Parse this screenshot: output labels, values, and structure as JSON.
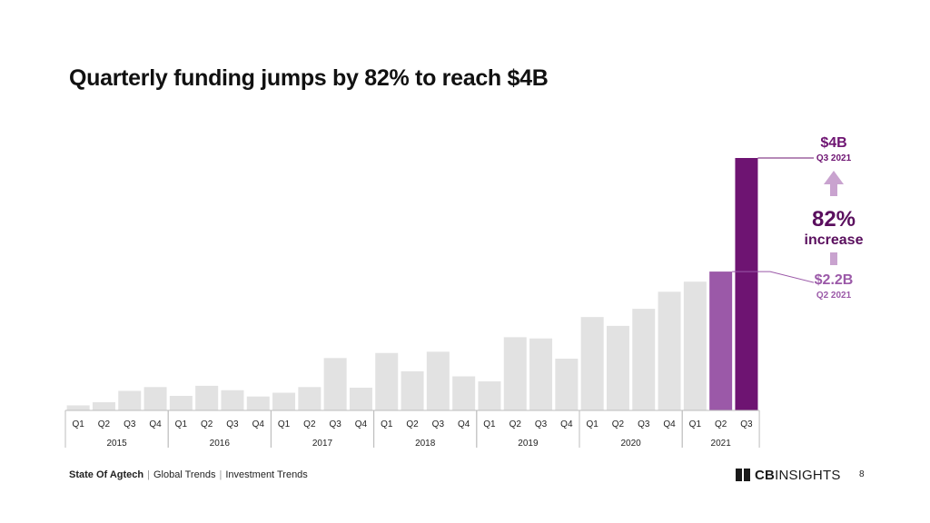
{
  "header": {
    "title": "Quarterly funding jumps by 82% to reach $4B"
  },
  "footer": {
    "report": "State Of Agtech",
    "section": "Global Trends",
    "subsection": "Investment Trends",
    "logo_bold": "CB",
    "logo_rest": "INSIGHTS",
    "page": "8"
  },
  "chart_data": {
    "type": "bar",
    "title": "Quarterly funding jumps by 82% to reach $4B",
    "unit": "$B",
    "years": [
      {
        "year": "2015",
        "quarters": [
          "Q1",
          "Q2",
          "Q3",
          "Q4"
        ]
      },
      {
        "year": "2016",
        "quarters": [
          "Q1",
          "Q2",
          "Q3",
          "Q4"
        ]
      },
      {
        "year": "2017",
        "quarters": [
          "Q1",
          "Q2",
          "Q3",
          "Q4"
        ]
      },
      {
        "year": "2018",
        "quarters": [
          "Q1",
          "Q2",
          "Q3",
          "Q4"
        ]
      },
      {
        "year": "2019",
        "quarters": [
          "Q1",
          "Q2",
          "Q3",
          "Q4"
        ]
      },
      {
        "year": "2020",
        "quarters": [
          "Q1",
          "Q2",
          "Q3",
          "Q4"
        ]
      },
      {
        "year": "2021",
        "quarters": [
          "Q1",
          "Q2",
          "Q3"
        ]
      }
    ],
    "values": [
      0.08,
      0.13,
      0.31,
      0.37,
      0.23,
      0.39,
      0.32,
      0.22,
      0.28,
      0.37,
      0.83,
      0.36,
      0.91,
      0.62,
      0.93,
      0.54,
      0.46,
      1.16,
      1.14,
      0.82,
      1.48,
      1.34,
      1.61,
      1.88,
      2.04,
      2.2,
      4.0
    ],
    "ylim": [
      0,
      4.4
    ],
    "colors": {
      "default": "#e2e2e2",
      "q2_2021": "#9b59a8",
      "q3_2021": "#6e1472",
      "arrow": "#c9a3cf"
    },
    "annotations": {
      "current_value": "$4B",
      "current_period": "Q3 2021",
      "prior_value": "$2.2B",
      "prior_period": "Q2 2021",
      "change_pct": "82%",
      "change_word": "increase"
    }
  }
}
